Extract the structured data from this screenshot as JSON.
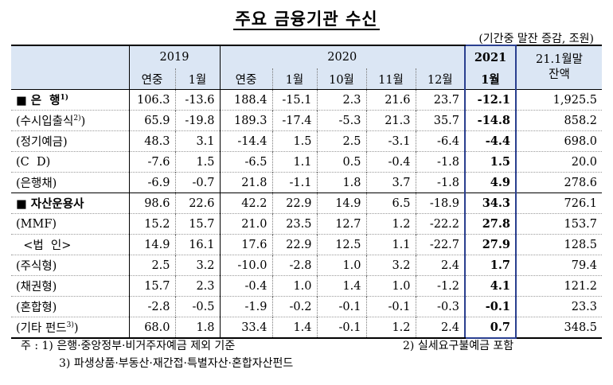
{
  "title": "주요 금융기관 수신",
  "unit": "(기간중 말잔 증감, 조원)",
  "header": {
    "y2019": "2019",
    "y2020": "2020",
    "y2021": "2021",
    "balance": "21.1월말\n잔액",
    "sub": [
      "연중",
      "1월",
      "연중",
      "1월",
      "10월",
      "11월",
      "12월",
      "1월"
    ]
  },
  "rows": [
    {
      "label": "■ 은  행",
      "sup": "1)",
      "values": [
        "106.3",
        "-13.6",
        "188.4",
        "-15.1",
        "2.3",
        "21.6",
        "23.7",
        "-12.1",
        "1,925.5"
      ],
      "group": true
    },
    {
      "label": "(수시입출식",
      "sup": "2)",
      "suffix": ")",
      "values": [
        "65.9",
        "-19.8",
        "189.3",
        "-17.4",
        "-5.3",
        "21.3",
        "35.7",
        "-14.8",
        "858.2"
      ]
    },
    {
      "label": "(정기예금)",
      "values": [
        "48.3",
        "3.1",
        "-14.4",
        "1.5",
        "2.5",
        "-3.1",
        "-6.4",
        "-4.4",
        "698.0"
      ]
    },
    {
      "label": "(C  D)",
      "values": [
        "-7.6",
        "1.5",
        "-6.5",
        "1.1",
        "0.5",
        "-0.4",
        "-1.8",
        "1.5",
        "20.0"
      ]
    },
    {
      "label": "(은행채)",
      "values": [
        "-6.9",
        "-0.7",
        "21.8",
        "-1.1",
        "1.8",
        "3.7",
        "-1.8",
        "4.9",
        "278.6"
      ]
    },
    {
      "label": "■ 자산운용사",
      "values": [
        "98.6",
        "22.6",
        "42.2",
        "22.9",
        "14.9",
        "6.5",
        "-18.9",
        "34.3",
        "726.1"
      ],
      "group": true
    },
    {
      "label": "(MMF)",
      "values": [
        "15.2",
        "15.7",
        "21.0",
        "23.5",
        "12.7",
        "1.2",
        "-22.2",
        "27.8",
        "153.7"
      ]
    },
    {
      "label": "  <법  인>",
      "values": [
        "14.9",
        "16.1",
        "17.6",
        "22.9",
        "12.5",
        "1.1",
        "-22.7",
        "27.9",
        "128.5"
      ]
    },
    {
      "label": "(주식형)",
      "values": [
        "2.5",
        "3.2",
        "-10.0",
        "-2.8",
        "1.0",
        "3.2",
        "2.4",
        "1.7",
        "79.4"
      ]
    },
    {
      "label": "(채권형)",
      "values": [
        "15.7",
        "2.3",
        "-0.4",
        "1.0",
        "1.4",
        "1.0",
        "-1.2",
        "4.1",
        "121.2"
      ]
    },
    {
      "label": "(혼합형)",
      "values": [
        "-2.8",
        "-0.5",
        "-1.9",
        "-0.2",
        "-0.1",
        "-0.1",
        "-0.3",
        "-0.1",
        "23.3"
      ]
    },
    {
      "label": "(기타 펀드",
      "sup": "3)",
      "suffix": ")",
      "values": [
        "68.0",
        "1.8",
        "33.4",
        "1.4",
        "-0.1",
        "1.2",
        "2.4",
        "0.7",
        "348.5"
      ]
    }
  ],
  "notes": {
    "n1": "주 : 1) 은행·중앙정부·비거주자예금 제외 기준",
    "n2": "2) 실세요구불예금 포함",
    "n3": "3) 파생상품·부동산·재간접·특별자산·혼합자산펀드"
  },
  "colors": {
    "header_bg": "#dbe6f4",
    "highlight_border": "#2a3f8f"
  }
}
